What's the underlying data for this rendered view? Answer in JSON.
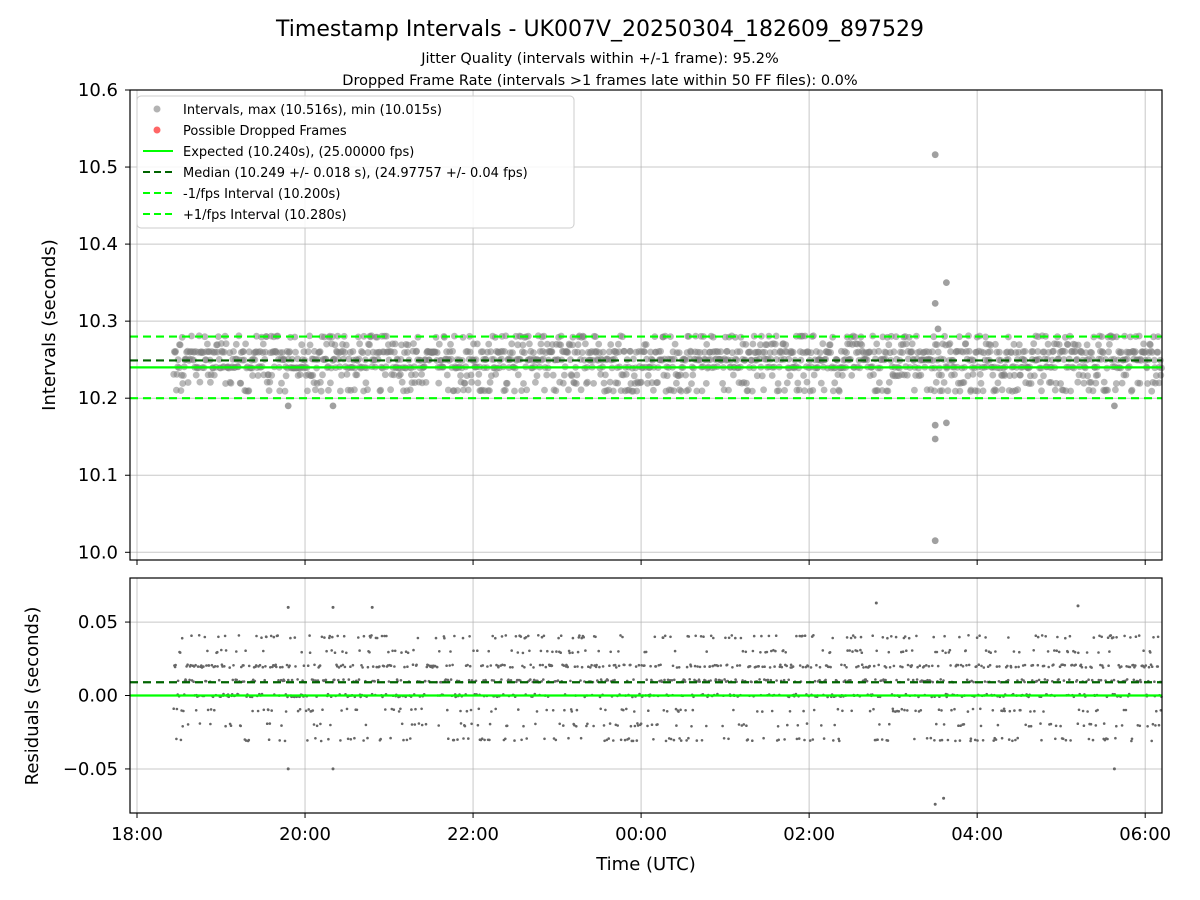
{
  "chart_data": [
    {
      "type": "scatter",
      "title": "Timestamp Intervals - UK007V_20250304_182609_897529",
      "subtitle_lines": [
        "Jitter Quality (intervals within +/-1 frame): 95.2%",
        "Dropped Frame Rate (intervals >1 frames late within 50 FF files): 0.0%"
      ],
      "xlabel": "",
      "ylabel": "Intervals (seconds)",
      "xlim": [
        "17:55",
        "06:12"
      ],
      "ylim": [
        9.99,
        10.6
      ],
      "yticks": [
        "10.0",
        "10.1",
        "10.2",
        "10.3",
        "10.4",
        "10.5",
        "10.6"
      ],
      "xticks": [
        "18:00",
        "20:00",
        "22:00",
        "00:00",
        "02:00",
        "04:00",
        "06:00"
      ],
      "grid": true,
      "legend_placement": "upper left",
      "legend": [
        "Intervals, max (10.516s), min (10.015s)",
        "Possible Dropped Frames",
        "Expected (10.240s), (25.00000 fps)",
        "Median (10.249 +/- 0.018 s), (24.97757 +/- 0.04 fps)",
        "-1/fps Interval (10.200s)",
        "+1/fps Interval (10.280s)"
      ],
      "colors": {
        "intervals": "#808080",
        "dropped": "#ff0000",
        "expected": "#00ff00",
        "median": "#006400",
        "fps_bounds": "#00ff00"
      },
      "reference_lines": {
        "expected": 10.24,
        "median": 10.249,
        "minus_one_fps": 10.2,
        "plus_one_fps": 10.28
      },
      "data_range_x": [
        "18:26",
        "06:12"
      ],
      "central_band": [
        10.21,
        10.29
      ],
      "outliers": [
        {
          "x": "19:48",
          "y": 10.19
        },
        {
          "x": "20:20",
          "y": 10.19
        },
        {
          "x": "03:30",
          "y": 10.516
        },
        {
          "x": "03:30",
          "y": 10.323
        },
        {
          "x": "03:32",
          "y": 10.29
        },
        {
          "x": "03:38",
          "y": 10.35
        },
        {
          "x": "03:30",
          "y": 10.165
        },
        {
          "x": "03:30",
          "y": 10.147
        },
        {
          "x": "03:38",
          "y": 10.168
        },
        {
          "x": "03:30",
          "y": 10.015
        },
        {
          "x": "05:38",
          "y": 10.19
        }
      ]
    },
    {
      "type": "scatter",
      "xlabel": "Time (UTC)",
      "ylabel": "Residuals (seconds)",
      "xlim": [
        "17:55",
        "06:12"
      ],
      "ylim": [
        -0.08,
        0.08
      ],
      "yticks": [
        "−0.05",
        "0.00",
        "0.05"
      ],
      "xticks": [
        "18:00",
        "20:00",
        "22:00",
        "00:00",
        "02:00",
        "04:00",
        "06:00"
      ],
      "grid": true,
      "reference_lines": {
        "zero": 0.0,
        "median": 0.009
      },
      "residual_levels": [
        -0.03,
        -0.02,
        -0.01,
        0.0,
        0.01,
        0.02,
        0.03,
        0.04
      ],
      "outliers": [
        {
          "x": "19:48",
          "y": 0.06
        },
        {
          "x": "20:20",
          "y": 0.06
        },
        {
          "x": "20:48",
          "y": 0.06
        },
        {
          "x": "19:48",
          "y": -0.05
        },
        {
          "x": "20:20",
          "y": -0.05
        },
        {
          "x": "02:48",
          "y": 0.063
        },
        {
          "x": "03:30",
          "y": -0.074
        },
        {
          "x": "03:36",
          "y": -0.07
        },
        {
          "x": "05:38",
          "y": -0.05
        },
        {
          "x": "05:12",
          "y": 0.061
        }
      ]
    }
  ]
}
